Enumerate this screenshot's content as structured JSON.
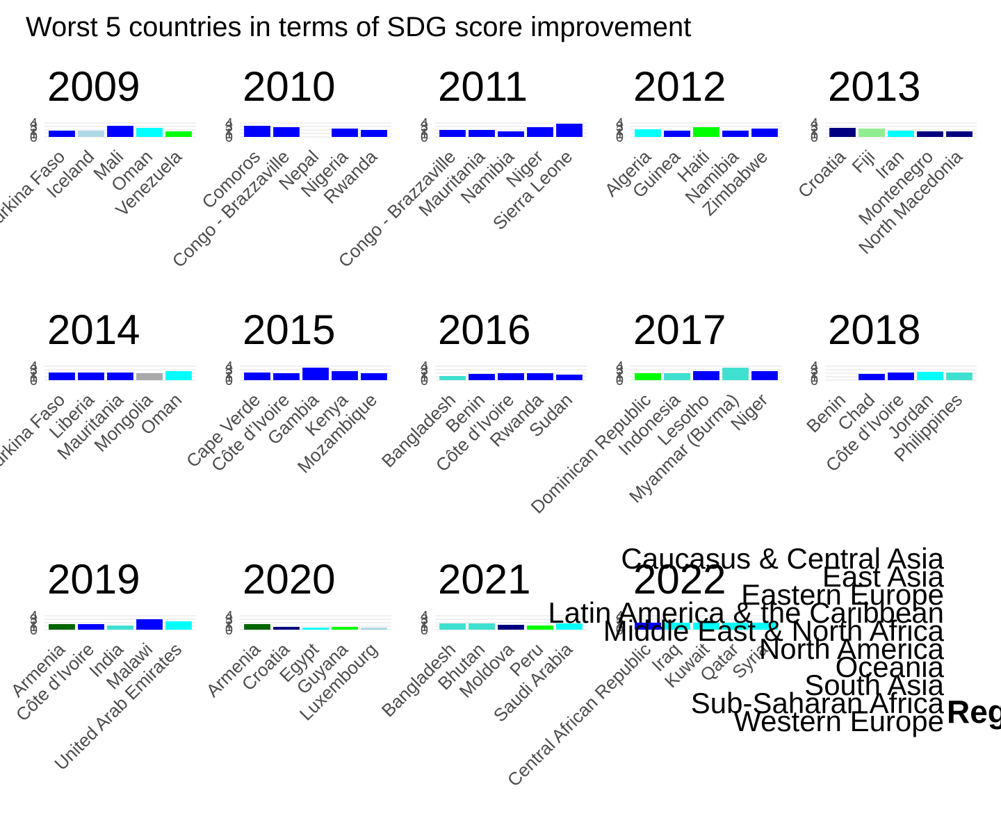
{
  "title": "Worst 5 countries in terms of SDG score improvement",
  "legend": {
    "title": "Reg",
    "entries": [
      "Caucasus & Central Asia",
      "East Asia",
      "Eastern Europe",
      "Latin America & the Caribbean",
      "Middle East & North Africa",
      "North America",
      "Oceania",
      "South Asia",
      "Sub-Saharan Africa",
      "Western Europe"
    ]
  },
  "chart_data": [
    {
      "type": "bar",
      "title": "2009",
      "categories": [
        "Burkina Faso",
        "Iceland",
        "Mali",
        "Oman",
        "Venezuela"
      ],
      "values": [
        1.8,
        1.8,
        3.2,
        2.6,
        1.6
      ],
      "colors": [
        "#0000ff",
        "#add8e6",
        "#0000ff",
        "#00ffff",
        "#00ff00"
      ],
      "ylim": [
        0,
        4
      ],
      "yticks": [
        0,
        1,
        2,
        3,
        4
      ],
      "grid": true
    },
    {
      "type": "bar",
      "title": "2010",
      "categories": [
        "Comoros",
        "Congo - Brazzaville",
        "Nepal",
        "Nigeria",
        "Rwanda"
      ],
      "values": [
        3.2,
        2.8,
        0,
        2.4,
        2.0
      ],
      "colors": [
        "#0000ff",
        "#0000ff",
        "#0000ff",
        "#0000ff",
        "#0000ff"
      ],
      "ylim": [
        0,
        4
      ],
      "yticks": [
        0,
        1,
        2,
        3,
        4
      ],
      "grid": true
    },
    {
      "type": "bar",
      "title": "2011",
      "categories": [
        "Congo - Brazzaville",
        "Mauritania",
        "Namibia",
        "Niger",
        "Sierra Leone"
      ],
      "values": [
        2.0,
        2.0,
        1.6,
        2.8,
        3.8
      ],
      "colors": [
        "#0000ff",
        "#0000ff",
        "#0000ff",
        "#0000ff",
        "#0000ff"
      ],
      "ylim": [
        0,
        4
      ],
      "yticks": [
        0,
        1,
        2,
        3,
        4
      ],
      "grid": true
    },
    {
      "type": "bar",
      "title": "2012",
      "categories": [
        "Algeria",
        "Guinea",
        "Haiti",
        "Namibia",
        "Zimbabwe"
      ],
      "values": [
        2.2,
        1.8,
        2.8,
        1.8,
        2.4
      ],
      "colors": [
        "#00ffff",
        "#0000ff",
        "#00ff00",
        "#0000ff",
        "#0000ff"
      ],
      "ylim": [
        0,
        4
      ],
      "yticks": [
        0,
        1,
        2,
        3,
        4
      ],
      "grid": true
    },
    {
      "type": "bar",
      "title": "2013",
      "categories": [
        "Croatia",
        "Fiji",
        "Iran",
        "Montenegro",
        "North Macedonia"
      ],
      "values": [
        2.6,
        2.4,
        1.8,
        1.6,
        1.6
      ],
      "colors": [
        "#000080",
        "#90ee90",
        "#00ffff",
        "#000080",
        "#000080"
      ],
      "ylim": [
        0,
        4
      ],
      "yticks": [
        0,
        1,
        2,
        3,
        4
      ],
      "grid": true
    },
    {
      "type": "bar",
      "title": "2014",
      "categories": [
        "Burkina Faso",
        "Liberia",
        "Mauritania",
        "Mongolia",
        "Oman"
      ],
      "values": [
        2.2,
        2.2,
        2.2,
        2.0,
        2.6
      ],
      "colors": [
        "#0000ff",
        "#0000ff",
        "#0000ff",
        "#a9a9a9",
        "#00ffff"
      ],
      "ylim": [
        0,
        4
      ],
      "yticks": [
        0,
        1,
        2,
        3,
        4
      ],
      "grid": true
    },
    {
      "type": "bar",
      "title": "2015",
      "categories": [
        "Cape Verde",
        "Côte d’Ivoire",
        "Gambia",
        "Kenya",
        "Mozambique"
      ],
      "values": [
        2.2,
        2.0,
        3.6,
        2.6,
        2.0
      ],
      "colors": [
        "#0000ff",
        "#0000ff",
        "#0000ff",
        "#0000ff",
        "#0000ff"
      ],
      "ylim": [
        0,
        4
      ],
      "yticks": [
        0,
        1,
        2,
        3,
        4
      ],
      "grid": true
    },
    {
      "type": "bar",
      "title": "2016",
      "categories": [
        "Bangladesh",
        "Benin",
        "Côte d’Ivoire",
        "Rwanda",
        "Sudan"
      ],
      "values": [
        1.2,
        1.8,
        2.0,
        2.0,
        1.6
      ],
      "colors": [
        "#40e0d0",
        "#0000ff",
        "#0000ff",
        "#0000ff",
        "#0000ff"
      ],
      "ylim": [
        0,
        4
      ],
      "yticks": [
        0,
        1,
        2,
        3,
        4
      ],
      "grid": true
    },
    {
      "type": "bar",
      "title": "2017",
      "categories": [
        "Dominican Republic",
        "Indonesia",
        "Lesotho",
        "Myanmar (Burma)",
        "Niger"
      ],
      "values": [
        2.0,
        2.0,
        2.6,
        3.6,
        2.6
      ],
      "colors": [
        "#00ff00",
        "#40e0d0",
        "#0000ff",
        "#40e0d0",
        "#0000ff"
      ],
      "ylim": [
        0,
        4
      ],
      "yticks": [
        0,
        1,
        2,
        3,
        4
      ],
      "grid": true
    },
    {
      "type": "bar",
      "title": "2018",
      "categories": [
        "Benin",
        "Chad",
        "Côte d’Ivoire",
        "Jordan",
        "Philippines"
      ],
      "values": [
        0,
        1.8,
        2.2,
        2.4,
        2.2
      ],
      "colors": [
        "#0000ff",
        "#0000ff",
        "#0000ff",
        "#00ffff",
        "#40e0d0"
      ],
      "ylim": [
        0,
        4
      ],
      "yticks": [
        0,
        1,
        2,
        3,
        4
      ],
      "grid": true
    },
    {
      "type": "bar",
      "title": "2019",
      "categories": [
        "Armenia",
        "Côte d’Ivoire",
        "India",
        "Malawi",
        "United Arab Emirates"
      ],
      "values": [
        1.6,
        1.6,
        1.2,
        3.0,
        2.4
      ],
      "colors": [
        "#006400",
        "#0000ff",
        "#40e0d0",
        "#0000ff",
        "#00ffff"
      ],
      "ylim": [
        0,
        4
      ],
      "yticks": [
        0,
        1,
        2,
        3,
        4
      ],
      "grid": true
    },
    {
      "type": "bar",
      "title": "2020",
      "categories": [
        "Armenia",
        "Croatia",
        "Egypt",
        "Guyana",
        "Luxembourg"
      ],
      "values": [
        1.6,
        0.8,
        0.6,
        0.8,
        0.6
      ],
      "colors": [
        "#006400",
        "#000080",
        "#00ffff",
        "#00ff00",
        "#add8e6"
      ],
      "ylim": [
        0,
        4
      ],
      "yticks": [
        0,
        1,
        2,
        3,
        4
      ],
      "grid": true
    },
    {
      "type": "bar",
      "title": "2021",
      "categories": [
        "Bangladesh",
        "Bhutan",
        "Moldova",
        "Peru",
        "Saudi Arabia"
      ],
      "values": [
        1.8,
        1.8,
        1.4,
        1.2,
        1.8
      ],
      "colors": [
        "#40e0d0",
        "#40e0d0",
        "#000080",
        "#00ff00",
        "#00ffff"
      ],
      "ylim": [
        0,
        4
      ],
      "yticks": [
        0,
        1,
        2,
        3,
        4
      ],
      "grid": true
    },
    {
      "type": "bar",
      "title": "2022",
      "categories": [
        "Central African Republic",
        "Iraq",
        "Kuwait",
        "Qatar",
        "Syria"
      ],
      "values": [
        2.0,
        2.0,
        2.0,
        2.0,
        2.0
      ],
      "colors": [
        "#0000ff",
        "#00ffff",
        "#00ffff",
        "#00ffff",
        "#00ffff"
      ],
      "ylim": [
        0,
        4
      ],
      "yticks": [
        0,
        1,
        2,
        3,
        4
      ],
      "grid": true
    }
  ]
}
